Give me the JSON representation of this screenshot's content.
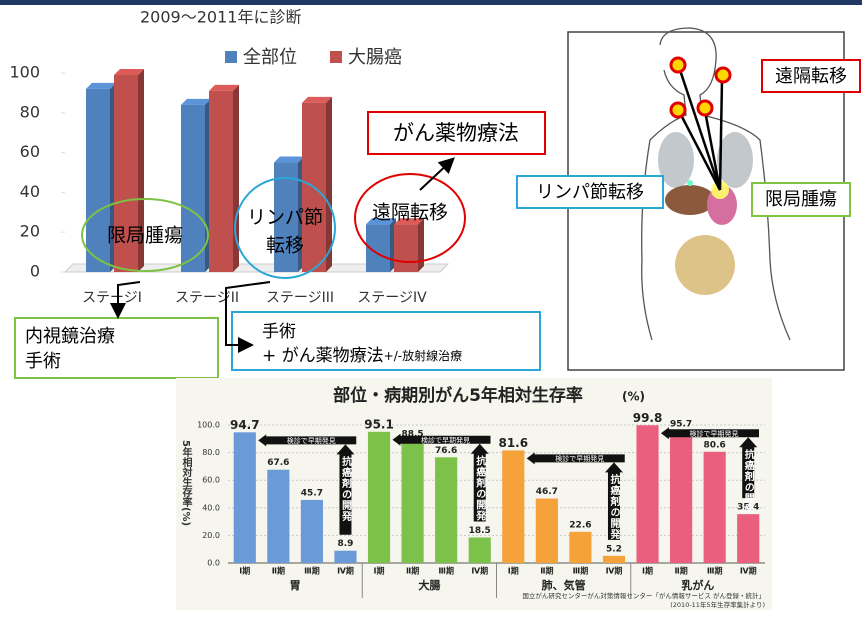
{
  "chart_data": [
    {
      "type": "bar3d",
      "title": "2009〜2011年に診断",
      "categories": [
        "ステージI",
        "ステージII",
        "ステージIII",
        "ステージIV"
      ],
      "series": [
        {
          "name": "全部位",
          "color": "#4f81bd",
          "values": [
            92,
            84,
            55,
            24
          ]
        },
        {
          "name": "大腸癌",
          "color": "#c0504d",
          "values": [
            99,
            91,
            85,
            24
          ]
        }
      ],
      "ylim": [
        0,
        100
      ],
      "yticks": [
        0,
        20,
        40,
        60,
        80,
        100
      ],
      "legend": "top"
    },
    {
      "type": "panel_bar",
      "title": "部位・病期別がん5年相対生存率",
      "unit": "(%)",
      "y_label": "5年相対生存率(%)",
      "ylim": [
        0,
        100
      ],
      "yticks": [
        {
          "value": 0,
          "label": "0.0"
        },
        {
          "value": 20,
          "label": "20.0"
        },
        {
          "value": 40,
          "label": "40.0"
        },
        {
          "value": 60,
          "label": "60.0"
        },
        {
          "value": 80,
          "label": "80.0"
        },
        {
          "value": 100,
          "label": "100.0"
        }
      ],
      "groups": [
        {
          "name": "胃",
          "color": "#6a9ad8",
          "categories": [
            "Ⅰ期",
            "Ⅱ期",
            "Ⅲ期",
            "Ⅳ期"
          ],
          "values": [
            94.7,
            67.6,
            45.7,
            8.9
          ],
          "early_detection": "検診で早期発見",
          "drug_development": "抗癌剤の開発"
        },
        {
          "name": "大腸",
          "color": "#7cc24a",
          "categories": [
            "Ⅰ期",
            "Ⅱ期",
            "Ⅲ期",
            "Ⅳ期"
          ],
          "values": [
            95.1,
            88.5,
            76.6,
            18.5
          ],
          "early_detection": "検診で早期発見",
          "drug_development": "抗癌剤の開発"
        },
        {
          "name": "肺、気管",
          "color": "#f5a23a",
          "categories": [
            "Ⅰ期",
            "Ⅱ期",
            "Ⅲ期",
            "Ⅳ期"
          ],
          "values": [
            81.6,
            46.7,
            22.6,
            5.2
          ],
          "early_detection": "検診で早期発見",
          "drug_development": "抗癌剤の開発"
        },
        {
          "name": "乳がん",
          "color": "#ea5f7d",
          "categories": [
            "Ⅰ期",
            "Ⅱ期",
            "Ⅲ期",
            "Ⅳ期"
          ],
          "values": [
            99.8,
            95.7,
            80.6,
            35.4
          ],
          "early_detection": "検診で早期発見",
          "drug_development": "抗癌剤の開発"
        }
      ],
      "source": [
        "国立がん研究センターがん対策情報センター「がん情報サービス がん登録・統計」",
        "(2010-11年5年生存率集計より)"
      ]
    }
  ],
  "callouts": {
    "localized": "限局腫瘍",
    "lymph": [
      "リンパ節",
      "転移"
    ],
    "distant": "遠隔転移",
    "chemo": "がん薬物療法",
    "stage1_treatment": [
      "内視鏡治療",
      "手術"
    ],
    "stage3_treatment": [
      "手術",
      "+ がん薬物療法",
      "+/-放射線治療"
    ]
  },
  "body_diagram": {
    "distant": "遠隔転移",
    "lymph": "リンパ節転移",
    "localized": "限局腫瘍"
  }
}
